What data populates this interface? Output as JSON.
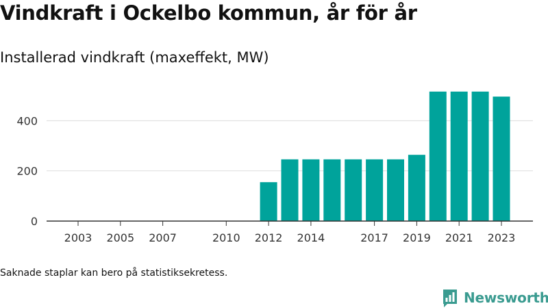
{
  "title": "Vindkraft i Ockelbo kommun, år för år",
  "subtitle": "Installerad vindkraft (maxeffekt, MW)",
  "footnote": "Saknade staplar kan bero på statistiksekretess.",
  "brand": {
    "name": "Newsworthy",
    "logo_icon": "bar-chart-speech-bubble-icon",
    "color": "#3a9b90"
  },
  "chart_data": {
    "type": "bar",
    "title": "Installerad vindkraft (maxeffekt, MW)",
    "categories": [
      "2003",
      "2004",
      "2005",
      "2006",
      "2007",
      "2008",
      "2009",
      "2010",
      "2011",
      "2012",
      "2013",
      "2014",
      "2015",
      "2016",
      "2017",
      "2018",
      "2019",
      "2020",
      "2021",
      "2022",
      "2023"
    ],
    "values": [
      0,
      0,
      0,
      0,
      0,
      0,
      0,
      0,
      0,
      155,
      246,
      246,
      246,
      246,
      246,
      246,
      264,
      516,
      516,
      516,
      496
    ],
    "x_tick_labels": [
      "2003",
      "2005",
      "2007",
      "2010",
      "2012",
      "2014",
      "2017",
      "2019",
      "2021",
      "2023"
    ],
    "y_ticks": [
      0,
      200,
      400
    ],
    "ylim": [
      0,
      540
    ],
    "bar_color": "#00a39b",
    "grid": "horizontal",
    "xlabel": "",
    "ylabel": ""
  }
}
